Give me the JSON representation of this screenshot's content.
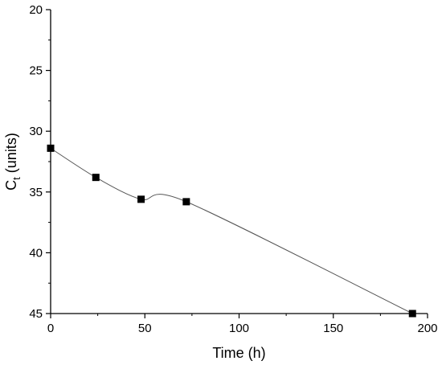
{
  "chart_data": {
    "type": "line",
    "title": "",
    "xlabel": "Time (h)",
    "ylabel": {
      "main": "C",
      "sub": "t",
      "rest": " (units)"
    },
    "xlim": [
      0,
      200
    ],
    "ylim": [
      45,
      20
    ],
    "y_inverted": true,
    "x_ticks": [
      0,
      50,
      100,
      150,
      200
    ],
    "y_ticks": [
      20,
      25,
      30,
      35,
      40,
      45
    ],
    "grid": false,
    "legend": "none",
    "series": [
      {
        "marker": "square",
        "color": "#000000",
        "line_color": "#555555",
        "x": [
          0,
          24,
          48,
          72,
          192
        ],
        "y": [
          31.4,
          33.8,
          35.6,
          35.8,
          45.0
        ]
      }
    ]
  }
}
